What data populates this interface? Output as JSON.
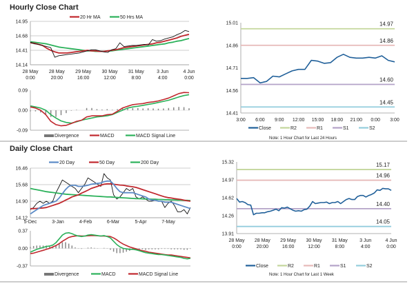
{
  "chart_data": [
    {
      "id": "hourly_price",
      "type": "line",
      "title": "Hourly Close Chart",
      "ylim": [
        14.14,
        14.95
      ],
      "yticks": [
        "14.95",
        "14.68",
        "14.41",
        "14.14"
      ],
      "xticks": [
        [
          "28 May",
          "0:00"
        ],
        [
          "28 May",
          "20:00"
        ],
        [
          "29 May",
          "16:00"
        ],
        [
          "30 May",
          "12:00"
        ],
        [
          "31 May",
          "8:00"
        ],
        [
          "3 Jun",
          "4:00"
        ],
        [
          "4 Jun",
          "0:00"
        ]
      ],
      "legend": [
        "20 Hr MA",
        "50 Hrs MA"
      ],
      "colors": {
        "close": "#111111",
        "ma20": "#c0272d",
        "ma50": "#2bb15a"
      },
      "series": {
        "close": [
          14.56,
          14.53,
          14.52,
          14.5,
          14.48,
          14.46,
          14.28,
          14.31,
          14.32,
          14.33,
          14.34,
          14.35,
          14.36,
          14.38,
          14.4,
          14.42,
          14.42,
          14.4,
          14.38,
          14.37,
          14.42,
          14.44,
          14.55,
          14.48,
          14.49,
          14.5,
          14.5,
          14.51,
          14.52,
          14.51,
          14.61,
          14.58,
          14.59,
          14.62,
          14.64,
          14.66,
          14.7,
          14.73,
          14.78,
          14.76
        ],
        "ma20": [
          14.55,
          14.54,
          14.52,
          14.5,
          14.45,
          14.41,
          14.38,
          14.36,
          14.36,
          14.36,
          14.37,
          14.38,
          14.39,
          14.4,
          14.41,
          14.4,
          14.4,
          14.39,
          14.39,
          14.4,
          14.41,
          14.42,
          14.44,
          14.46,
          14.47,
          14.48,
          14.49,
          14.5,
          14.51,
          14.52,
          14.53,
          14.55,
          14.56,
          14.58,
          14.6,
          14.62,
          14.64,
          14.67,
          14.69,
          14.71
        ],
        "ma50": [
          14.57,
          14.56,
          14.55,
          14.54,
          14.53,
          14.51,
          14.49,
          14.47,
          14.46,
          14.45,
          14.44,
          14.43,
          14.42,
          14.41,
          14.4,
          14.4,
          14.39,
          14.39,
          14.39,
          14.4,
          14.4,
          14.41,
          14.42,
          14.43,
          14.44,
          14.45,
          14.46,
          14.47,
          14.48,
          14.49,
          14.5,
          14.51,
          14.52,
          14.53,
          14.55,
          14.56,
          14.58,
          14.59,
          14.61,
          14.63
        ]
      }
    },
    {
      "id": "hourly_macd",
      "type": "line",
      "ylim": [
        -0.09,
        0.09
      ],
      "yticks": [
        "0.09",
        "0.00",
        "-0.09"
      ],
      "legend": [
        "Divergence",
        "MACD",
        "MACD Signal Line"
      ],
      "colors": {
        "divergence": "#888888",
        "macd": "#c0272d",
        "signal": "#2bb15a"
      },
      "series": {
        "macd": [
          0.015,
          0.01,
          0.0,
          -0.02,
          -0.05,
          -0.065,
          -0.07,
          -0.068,
          -0.06,
          -0.05,
          -0.045,
          -0.03,
          -0.025,
          -0.025,
          -0.025,
          -0.02,
          -0.018,
          -0.005,
          0.01,
          0.018,
          0.025,
          0.028,
          0.03,
          0.035,
          0.038,
          0.042,
          0.048,
          0.055,
          0.065,
          0.075,
          0.08,
          0.079
        ],
        "signal": [
          0.02,
          0.015,
          0.01,
          0.0,
          -0.02,
          -0.035,
          -0.048,
          -0.055,
          -0.058,
          -0.052,
          -0.045,
          -0.04,
          -0.035,
          -0.03,
          -0.028,
          -0.025,
          -0.02,
          -0.01,
          0.0,
          0.01,
          0.015,
          0.018,
          0.022,
          0.026,
          0.03,
          0.035,
          0.04,
          0.045,
          0.052,
          0.06,
          0.066,
          0.07
        ]
      }
    },
    {
      "id": "hourly_24h",
      "type": "line",
      "ylim": [
        14.41,
        15.01
      ],
      "yticks": [
        "15.01",
        "14.86",
        "14.71",
        "14.56",
        "14.41"
      ],
      "xticks": [
        "3:00",
        "6:00",
        "9:00",
        "12:00",
        "15:00",
        "18:00",
        "21:00",
        "0:00",
        "3:00"
      ],
      "levels": [
        {
          "name": "R2",
          "value": 14.97,
          "label": "14.97",
          "color": "#c3d69b"
        },
        {
          "name": "R1",
          "value": 14.86,
          "label": "14.86",
          "color": "#e6b9b8"
        },
        {
          "name": "S1",
          "value": 14.6,
          "label": "14.60",
          "color": "#b3a2c7"
        },
        {
          "name": "S2",
          "value": 14.45,
          "label": "14.45",
          "color": "#93cddd"
        }
      ],
      "legend": [
        "Close",
        "R2",
        "R1",
        "S1",
        "S2"
      ],
      "close_color": "#1f5f99",
      "note": "Note: 1 Hour Chart for Last 24 Hours",
      "close": [
        14.64,
        14.64,
        14.645,
        14.61,
        14.62,
        14.655,
        14.65,
        14.67,
        14.69,
        14.7,
        14.7,
        14.76,
        14.755,
        14.74,
        14.745,
        14.78,
        14.8,
        14.78,
        14.775,
        14.775,
        14.78,
        14.775,
        14.79,
        14.76,
        14.75
      ]
    },
    {
      "id": "daily_price",
      "type": "line",
      "title": "Daily Close Chart",
      "ylim": [
        14.12,
        16.46
      ],
      "yticks": [
        "16.46",
        "15.68",
        "14.90",
        "14.12"
      ],
      "xticks": [
        "5-Dec",
        "3-Jan",
        "4-Feb",
        "6-Mar",
        "5-Apr",
        "7-May"
      ],
      "legend": [
        "20 Day",
        "50 Day",
        "200 Day"
      ],
      "colors": {
        "close": "#111111",
        "d20": "#5b8ac6",
        "d50": "#c0272d",
        "d200": "#2bb15a"
      },
      "series": {
        "close": [
          14.5,
          14.6,
          14.8,
          14.9,
          14.8,
          14.9,
          14.8,
          14.9,
          15.3,
          15.6,
          15.9,
          15.8,
          15.7,
          15.6,
          15.5,
          15.3,
          15.5,
          15.7,
          16.0,
          15.9,
          15.8,
          15.7,
          15.6,
          16.2,
          16.0,
          15.9,
          15.2,
          15.0,
          15.1,
          15.3,
          15.5,
          15.4,
          15.5,
          15.1,
          15.0,
          15.1,
          15.0,
          14.9,
          14.9,
          14.95,
          14.9,
          14.9,
          14.6,
          14.8,
          14.9,
          14.7,
          14.4,
          14.4,
          14.5,
          14.3,
          14.6
        ],
        "d20": [
          14.3,
          14.4,
          14.5,
          14.6,
          14.7,
          14.75,
          14.8,
          14.85,
          14.9,
          15.05,
          15.25,
          15.45,
          15.6,
          15.65,
          15.65,
          15.6,
          15.6,
          15.62,
          15.65,
          15.7,
          15.72,
          15.74,
          15.76,
          15.82,
          15.85,
          15.85,
          15.7,
          15.5,
          15.35,
          15.3,
          15.3,
          15.3,
          15.3,
          15.25,
          15.2,
          15.15,
          15.1,
          15.0,
          14.95,
          14.95,
          14.9,
          14.9,
          14.85,
          14.85,
          14.85,
          14.8,
          14.75,
          14.7,
          14.65,
          14.6,
          14.55
        ],
        "d50": [
          14.55,
          14.55,
          14.56,
          14.57,
          14.58,
          14.6,
          14.65,
          14.7,
          14.75,
          14.8,
          14.87,
          14.95,
          15.02,
          15.1,
          15.15,
          15.2,
          15.28,
          15.35,
          15.42,
          15.5,
          15.55,
          15.6,
          15.65,
          15.7,
          15.72,
          15.72,
          15.7,
          15.68,
          15.66,
          15.65,
          15.62,
          15.6,
          15.58,
          15.55,
          15.5,
          15.45,
          15.4,
          15.35,
          15.3,
          15.25,
          15.2,
          15.15,
          15.1,
          15.07,
          15.05,
          15.02,
          15.0,
          14.98,
          14.95,
          14.92,
          14.9
        ],
        "d200": [
          15.5,
          15.47,
          15.44,
          15.41,
          15.38,
          15.35,
          15.33,
          15.31,
          15.29,
          15.27,
          15.25,
          15.23,
          15.22,
          15.21,
          15.2,
          15.19,
          15.18,
          15.17,
          15.16,
          15.15,
          15.14,
          15.13,
          15.12,
          15.11,
          15.1,
          15.1,
          15.09,
          15.08,
          15.07,
          15.06,
          15.05,
          15.04,
          15.03,
          15.02,
          15.02,
          15.01,
          15.0,
          15.0,
          14.99,
          14.99,
          14.98,
          14.98,
          14.97,
          14.97,
          14.96,
          14.96,
          14.95,
          14.95,
          14.94,
          14.94,
          14.93
        ]
      }
    },
    {
      "id": "daily_macd",
      "type": "line",
      "ylim": [
        -0.37,
        0.37
      ],
      "yticks": [
        "0.37",
        "0.00",
        "-0.37"
      ],
      "legend": [
        "Divergence",
        "MACD",
        "MACD Signal Line"
      ],
      "colors": {
        "divergence": "#888888",
        "macd": "#2bb15a",
        "signal": "#c0272d"
      },
      "series": {
        "macd": [
          -0.08,
          -0.05,
          -0.02,
          0.0,
          0.02,
          0.04,
          0.05,
          0.07,
          0.12,
          0.2,
          0.28,
          0.32,
          0.33,
          0.31,
          0.28,
          0.26,
          0.25,
          0.26,
          0.28,
          0.29,
          0.28,
          0.27,
          0.26,
          0.27,
          0.25,
          0.22,
          0.15,
          0.08,
          0.03,
          0.0,
          -0.01,
          -0.02,
          -0.02,
          -0.03,
          -0.05,
          -0.07,
          -0.09,
          -0.1,
          -0.11,
          -0.12,
          -0.13,
          -0.13,
          -0.14,
          -0.15,
          -0.16,
          -0.17,
          -0.18,
          -0.19,
          -0.21,
          -0.22,
          -0.21
        ],
        "signal": [
          -0.11,
          -0.1,
          -0.08,
          -0.06,
          -0.04,
          -0.02,
          0.0,
          0.03,
          0.06,
          0.1,
          0.15,
          0.19,
          0.23,
          0.25,
          0.26,
          0.265,
          0.26,
          0.26,
          0.265,
          0.27,
          0.27,
          0.265,
          0.26,
          0.26,
          0.255,
          0.25,
          0.22,
          0.18,
          0.13,
          0.09,
          0.06,
          0.03,
          0.01,
          -0.01,
          -0.03,
          -0.05,
          -0.06,
          -0.08,
          -0.09,
          -0.1,
          -0.11,
          -0.12,
          -0.13,
          -0.14,
          -0.14,
          -0.15,
          -0.16,
          -0.17,
          -0.18,
          -0.19,
          -0.2
        ]
      }
    },
    {
      "id": "weekly_hourly",
      "type": "line",
      "ylim": [
        13.91,
        15.32
      ],
      "yticks": [
        "15.32",
        "14.97",
        "14.62",
        "14.26",
        "13.91"
      ],
      "xticks": [
        [
          "28 May",
          "0:00"
        ],
        [
          "28 May",
          "20:00"
        ],
        [
          "29 May",
          "16:00"
        ],
        [
          "30 May",
          "12:00"
        ],
        [
          "31 May",
          "8:00"
        ],
        [
          "3 Jun",
          "4:00"
        ],
        [
          "4 Jun",
          "0:00"
        ]
      ],
      "levels": [
        {
          "name": "R2",
          "value": 15.17,
          "label": "15.17",
          "color": "#c3d69b"
        },
        {
          "name": "R1",
          "value": 14.96,
          "label": "14.96",
          "color": "#e6b9b8"
        },
        {
          "name": "S1",
          "value": 14.4,
          "label": "14.40",
          "color": "#b3a2c7"
        },
        {
          "name": "S2",
          "value": 14.05,
          "label": "14.05",
          "color": "#93cddd"
        }
      ],
      "legend": [
        "Close",
        "R2",
        "R1",
        "S1",
        "S2"
      ],
      "close_color": "#1f5f99",
      "note": "Note: 1 Hour Chart for Last 1 Week",
      "close": [
        14.6,
        14.53,
        14.54,
        14.52,
        14.48,
        14.47,
        14.28,
        14.31,
        14.31,
        14.32,
        14.32,
        14.34,
        14.35,
        14.37,
        14.39,
        14.36,
        14.42,
        14.41,
        14.43,
        14.4,
        14.37,
        14.35,
        14.36,
        14.35,
        14.38,
        14.39,
        14.45,
        14.54,
        14.5,
        14.51,
        14.52,
        14.52,
        14.53,
        14.5,
        14.52,
        14.52,
        14.54,
        14.5,
        14.54,
        14.58,
        14.6,
        14.58,
        14.58,
        14.64,
        14.66,
        14.66,
        14.63,
        14.66,
        14.68,
        14.71,
        14.77,
        14.76,
        14.8,
        14.79,
        14.79,
        14.76
      ]
    }
  ]
}
